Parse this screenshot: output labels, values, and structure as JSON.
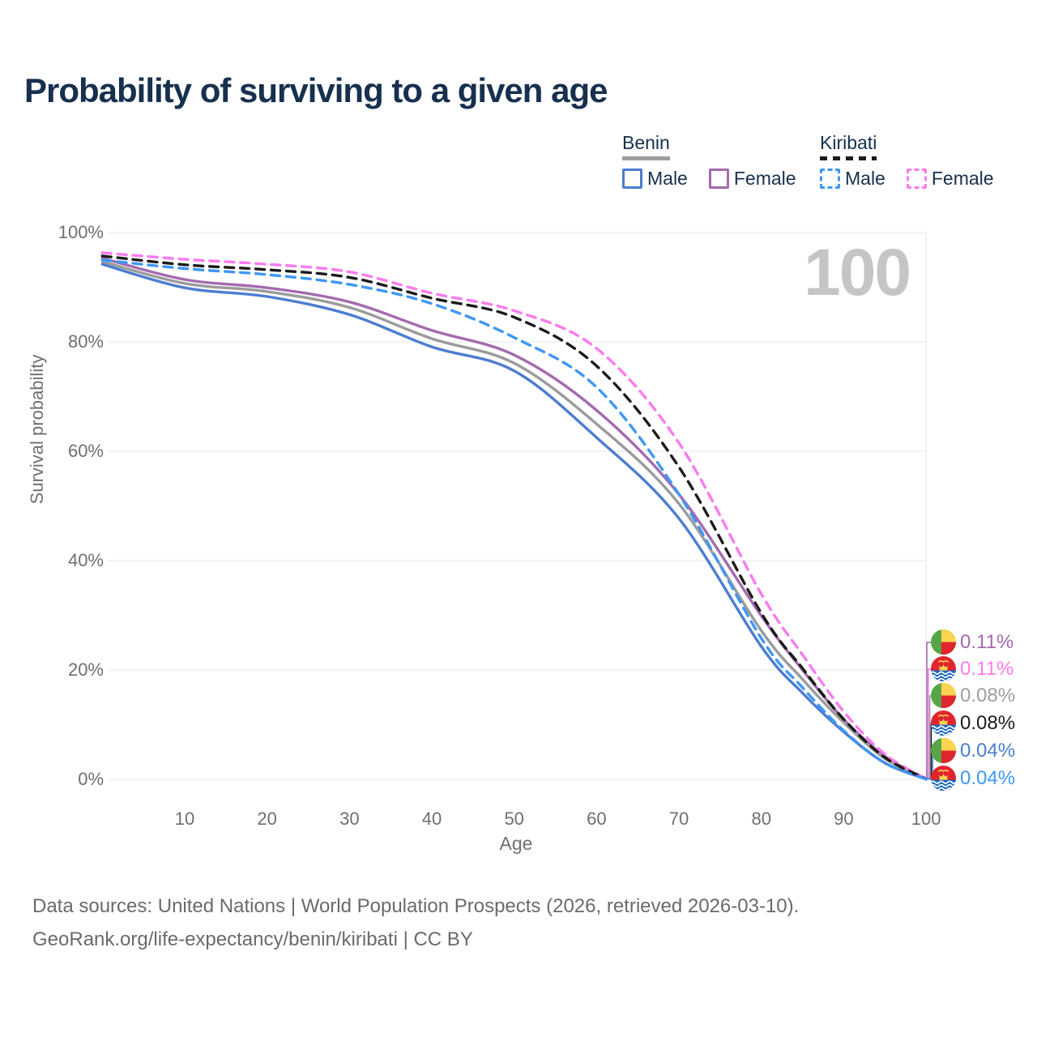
{
  "title": "Probability of surviving to a given age",
  "watermark_age": "100",
  "legend": {
    "groups": [
      {
        "label": "Benin",
        "line_style": "solid",
        "underline_color": "#9e9e9e",
        "items": [
          {
            "label": "Male",
            "color": "#4c7dd0",
            "dash": false
          },
          {
            "label": "Female",
            "color": "#a46aae",
            "dash": false
          }
        ]
      },
      {
        "label": "Kiribati",
        "line_style": "dashed",
        "underline_color": "#1b1b1b",
        "items": [
          {
            "label": "Male",
            "color": "#3e97f6",
            "dash": true
          },
          {
            "label": "Female",
            "color": "#fb7bef",
            "dash": true
          }
        ]
      }
    ]
  },
  "axes": {
    "y_label": "Survival probability",
    "x_label": "Age",
    "y_ticks": [
      {
        "label": "100%",
        "value": 100
      },
      {
        "label": "80%",
        "value": 80
      },
      {
        "label": "60%",
        "value": 60
      },
      {
        "label": "40%",
        "value": 40
      },
      {
        "label": "20%",
        "value": 20
      },
      {
        "label": "0%",
        "value": 0
      }
    ],
    "x_ticks": [
      10,
      20,
      30,
      40,
      50,
      60,
      70,
      80,
      90,
      100
    ]
  },
  "chart_data": {
    "type": "line",
    "title": "Probability of surviving to a given age",
    "xlabel": "Age",
    "ylabel": "Survival probability",
    "xlim": [
      0,
      100
    ],
    "ylim": [
      0,
      100
    ],
    "grid": "horizontal",
    "legend_position": "top-right",
    "x": [
      0,
      10,
      20,
      30,
      40,
      50,
      60,
      70,
      80,
      85,
      90,
      95,
      100
    ],
    "series": [
      {
        "name": "Benin Female",
        "color": "#a46aae",
        "dash": false,
        "values": [
          95.3,
          91.4,
          89.9,
          87.3,
          82.1,
          77.6,
          67.5,
          52.1,
          29.9,
          20.0,
          11.0,
          4.2,
          0.11
        ]
      },
      {
        "name": "Benin Both sexes",
        "color": "#9b9b9b",
        "dash": false,
        "values": [
          94.7,
          90.7,
          89.2,
          86.3,
          80.6,
          76.1,
          65.0,
          50.4,
          27.2,
          18.3,
          10.4,
          3.8,
          0.08
        ]
      },
      {
        "name": "Benin Male",
        "color": "#4c7dd0",
        "dash": false,
        "values": [
          94.2,
          89.9,
          88.3,
          85.0,
          79.1,
          74.7,
          62.5,
          47.7,
          24.3,
          15.8,
          8.7,
          3.0,
          0.04
        ]
      },
      {
        "name": "Kiribati Female",
        "color": "#fb7bef",
        "dash": true,
        "values": [
          96.3,
          95.1,
          94.2,
          92.8,
          88.9,
          85.7,
          78.8,
          61.5,
          33.9,
          22.8,
          12.4,
          4.6,
          0.11
        ]
      },
      {
        "name": "Kiribati Both sexes",
        "color": "#1b1b1b",
        "dash": true,
        "values": [
          95.7,
          94.1,
          93.2,
          91.8,
          88.0,
          84.5,
          75.6,
          57.1,
          30.4,
          20.3,
          11.0,
          4.0,
          0.08
        ]
      },
      {
        "name": "Kiribati Male",
        "color": "#3e97f6",
        "dash": true,
        "values": [
          95.0,
          93.4,
          92.3,
          90.5,
          87.0,
          80.8,
          71.7,
          52.1,
          25.8,
          16.8,
          8.9,
          3.0,
          0.04
        ]
      }
    ],
    "end_labels": [
      {
        "country": "benin",
        "series": "Benin Female",
        "text": "0.11%",
        "color": "#a46aae"
      },
      {
        "country": "kiribati",
        "series": "Kiribati Female",
        "text": "0.11%",
        "color": "#fb7bef"
      },
      {
        "country": "benin",
        "series": "Benin Both sexes",
        "text": "0.08%",
        "color": "#9e9e9e"
      },
      {
        "country": "kiribati",
        "series": "Kiribati Both sexes",
        "text": "0.08%",
        "color": "#1b1b1b"
      },
      {
        "country": "benin",
        "series": "Benin Male",
        "text": "0.04%",
        "color": "#4c7dd0"
      },
      {
        "country": "kiribati",
        "series": "Kiribati Male",
        "text": "0.04%",
        "color": "#3e97f6"
      }
    ]
  },
  "footer": {
    "line1": "Data sources: United Nations | World Population Prospects (2026, retrieved 2026-03-10).",
    "line2": "GeoRank.org/life-expectancy/benin/kiribati | CC BY"
  }
}
